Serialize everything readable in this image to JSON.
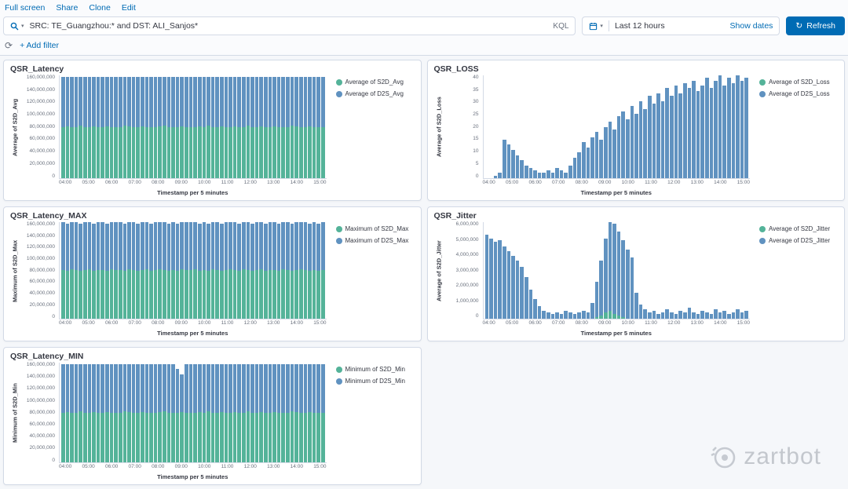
{
  "toolbar": {
    "links": [
      "Full screen",
      "Share",
      "Clone",
      "Edit"
    ]
  },
  "query_bar": {
    "query": "SRC: TE_Guangzhou:* and DST: ALI_Sanjos*",
    "language_label": "KQL",
    "time_range": "Last 12 hours",
    "show_dates_label": "Show dates",
    "refresh_label": "Refresh"
  },
  "filter_bar": {
    "add_filter_label": "+ Add filter"
  },
  "colors": {
    "green": "#54B399",
    "blue": "#6092C0",
    "link": "#006BB4"
  },
  "watermark": {
    "text": "zartbot"
  },
  "panels": [
    {
      "title": "QSR_Latency",
      "ylabel": "Average of S2D_Avg",
      "xlabel": "Timestamp per 5 minutes",
      "yticks": [
        "160,000,000",
        "140,000,000",
        "120,000,000",
        "100,000,000",
        "80,000,000",
        "60,000,000",
        "40,000,000",
        "20,000,000",
        "0"
      ],
      "xticks": [
        "04:00",
        "05:00",
        "06:00",
        "07:00",
        "08:00",
        "09:00",
        "10:00",
        "11:00",
        "12:00",
        "13:00",
        "14:00",
        "15:00"
      ],
      "legend": [
        {
          "label": "Average of S2D_Avg",
          "color": "#54B399"
        },
        {
          "label": "Average of D2S_Avg",
          "color": "#6092C0"
        }
      ],
      "chart": {
        "type": "bar",
        "stacked": true,
        "ymax": 160,
        "value_unit": "millions",
        "series": [
          {
            "name": "Average of S2D_Avg",
            "color": "#54B399",
            "values": [
              80,
              81,
              79,
              80,
              82,
              80,
              79,
              81,
              80,
              80,
              81,
              79,
              80,
              80,
              82,
              81,
              79,
              80,
              81,
              80,
              79,
              80,
              81,
              82,
              80,
              79,
              80,
              81,
              80,
              80,
              79,
              81,
              80,
              82,
              80,
              79,
              81,
              80,
              80,
              81,
              79,
              80,
              82,
              80,
              79,
              81,
              80,
              80,
              81,
              79,
              80,
              80,
              82,
              81,
              79,
              80,
              81,
              80,
              79,
              80
            ]
          },
          {
            "name": "Average of D2S_Avg",
            "color": "#6092C0",
            "values": [
              78,
              77,
              79,
              78,
              76,
              78,
              79,
              77,
              78,
              78,
              77,
              79,
              78,
              78,
              76,
              77,
              79,
              78,
              77,
              78,
              79,
              78,
              77,
              76,
              78,
              79,
              78,
              77,
              78,
              78,
              79,
              77,
              78,
              76,
              78,
              79,
              77,
              78,
              78,
              77,
              79,
              78,
              76,
              78,
              79,
              77,
              78,
              78,
              77,
              79,
              78,
              78,
              76,
              77,
              79,
              78,
              77,
              78,
              79,
              78
            ]
          }
        ]
      }
    },
    {
      "title": "QSR_LOSS",
      "ylabel": "Average of S2D_Loss",
      "xlabel": "Timestamp per 5 minutes",
      "yticks": [
        "40",
        "35",
        "30",
        "25",
        "20",
        "15",
        "10",
        "5",
        "0"
      ],
      "xticks": [
        "04:00",
        "05:00",
        "06:00",
        "07:00",
        "08:00",
        "09:00",
        "10:00",
        "11:00",
        "12:00",
        "13:00",
        "14:00",
        "15:00"
      ],
      "legend": [
        {
          "label": "Average of S2D_Loss",
          "color": "#54B399"
        },
        {
          "label": "Average of D2S_Loss",
          "color": "#6092C0"
        }
      ],
      "chart": {
        "type": "bar",
        "stacked": true,
        "ymax": 40,
        "value_unit": "absolute",
        "series": [
          {
            "name": "Average of S2D_Loss",
            "color": "#54B399",
            "values": [
              0,
              0,
              0,
              0,
              0,
              0,
              0,
              0,
              0,
              0,
              0,
              0,
              0,
              0,
              0,
              0,
              0,
              0,
              0,
              0,
              0,
              0,
              0,
              0,
              0,
              0,
              0,
              0,
              0,
              0,
              0,
              0,
              0,
              0,
              0,
              0,
              0,
              0,
              0,
              0,
              0,
              0,
              0,
              0,
              0,
              0,
              0,
              0,
              0,
              0,
              0,
              0,
              0,
              0,
              0,
              0,
              0,
              0,
              0,
              0
            ]
          },
          {
            "name": "Average of D2S_Loss",
            "color": "#6092C0",
            "values": [
              0,
              0,
              1,
              2,
              15,
              13,
              11,
              9,
              7,
              5,
              4,
              3,
              2,
              2,
              3,
              2,
              4,
              3,
              2,
              5,
              8,
              10,
              14,
              12,
              16,
              18,
              15,
              20,
              22,
              19,
              24,
              26,
              23,
              28,
              25,
              30,
              27,
              32,
              29,
              33,
              30,
              35,
              32,
              36,
              33,
              37,
              35,
              38,
              34,
              36,
              39,
              35,
              38,
              40,
              36,
              39,
              37,
              40,
              38,
              39
            ]
          }
        ]
      }
    },
    {
      "title": "QSR_Latency_MAX",
      "ylabel": "Maximum of S2D_Max",
      "xlabel": "Timestamp per 5 minutes",
      "yticks": [
        "160,000,000",
        "140,000,000",
        "120,000,000",
        "100,000,000",
        "80,000,000",
        "60,000,000",
        "40,000,000",
        "20,000,000",
        "0"
      ],
      "xticks": [
        "04:00",
        "05:00",
        "06:00",
        "07:00",
        "08:00",
        "09:00",
        "10:00",
        "11:00",
        "12:00",
        "13:00",
        "14:00",
        "15:00"
      ],
      "legend": [
        {
          "label": "Maximum of S2D_Max",
          "color": "#54B399"
        },
        {
          "label": "Maximum of D2S_Max",
          "color": "#6092C0"
        }
      ],
      "chart": {
        "type": "bar",
        "stacked": true,
        "ymax": 160,
        "value_unit": "millions",
        "series": [
          {
            "name": "Maximum of S2D_Max",
            "color": "#54B399",
            "values": [
              81,
              80,
              82,
              81,
              80,
              81,
              82,
              80,
              81,
              81,
              80,
              82,
              81,
              81,
              80,
              82,
              81,
              80,
              81,
              82,
              80,
              81,
              82,
              81,
              80,
              81,
              80,
              82,
              81,
              81,
              82,
              80,
              81,
              80,
              82,
              81,
              80,
              81,
              82,
              81,
              80,
              82,
              81,
              80,
              81,
              82,
              80,
              81,
              81,
              80,
              82,
              81,
              80,
              81,
              82,
              81,
              80,
              81,
              80,
              81
            ]
          },
          {
            "name": "Maximum of D2S_Max",
            "color": "#6092C0",
            "values": [
              79,
              78,
              80,
              79,
              78,
              79,
              80,
              78,
              79,
              79,
              78,
              80,
              79,
              79,
              78,
              80,
              79,
              78,
              79,
              80,
              78,
              79,
              80,
              79,
              78,
              79,
              78,
              96,
              79,
              79,
              80,
              78,
              79,
              78,
              80,
              79,
              78,
              79,
              80,
              79,
              78,
              80,
              79,
              78,
              79,
              80,
              78,
              79,
              79,
              78,
              80,
              79,
              78,
              79,
              80,
              79,
              78,
              79,
              78,
              79
            ]
          }
        ]
      }
    },
    {
      "title": "QSR_Jitter",
      "ylabel": "Average of S2D_Jitter",
      "xlabel": "Timestamp per 5 minutes",
      "yticks": [
        "6,000,000",
        "5,000,000",
        "4,000,000",
        "3,000,000",
        "2,000,000",
        "1,000,000",
        "0"
      ],
      "xticks": [
        "04:00",
        "05:00",
        "06:00",
        "07:00",
        "08:00",
        "09:00",
        "10:00",
        "11:00",
        "12:00",
        "13:00",
        "14:00",
        "15:00"
      ],
      "legend": [
        {
          "label": "Average of S2D_Jitter",
          "color": "#54B399"
        },
        {
          "label": "Average of D2S_Jitter",
          "color": "#6092C0"
        }
      ],
      "chart": {
        "type": "bar",
        "stacked": true,
        "ymax": 6,
        "value_unit": "millions",
        "series": [
          {
            "name": "Average of S2D_Jitter",
            "color": "#54B399",
            "values": [
              0,
              0,
              0,
              0,
              0,
              0,
              0,
              0,
              0,
              0,
              0,
              0,
              0,
              0,
              0,
              0,
              0,
              0,
              0,
              0,
              0,
              0,
              0,
              0,
              0,
              0.1,
              0.2,
              0.4,
              0.5,
              0.3,
              0.2,
              0.1,
              0,
              0,
              0,
              0,
              0,
              0,
              0,
              0,
              0,
              0,
              0,
              0,
              0,
              0,
              0,
              0,
              0,
              0,
              0,
              0,
              0,
              0,
              0,
              0,
              0,
              0,
              0,
              0
            ]
          },
          {
            "name": "Average of D2S_Jitter",
            "color": "#6092C0",
            "values": [
              5.2,
              5.0,
              4.8,
              4.9,
              4.5,
              4.2,
              3.9,
              3.6,
              3.2,
              2.6,
              1.8,
              1.2,
              0.8,
              0.5,
              0.4,
              0.3,
              0.4,
              0.3,
              0.5,
              0.4,
              0.3,
              0.4,
              0.5,
              0.4,
              1.0,
              2.2,
              3.4,
              4.6,
              6.8,
              5.6,
              5.2,
              4.8,
              4.3,
              3.8,
              1.6,
              0.9,
              0.6,
              0.4,
              0.5,
              0.3,
              0.4,
              0.6,
              0.4,
              0.3,
              0.5,
              0.4,
              0.7,
              0.4,
              0.3,
              0.5,
              0.4,
              0.3,
              0.6,
              0.4,
              0.5,
              0.3,
              0.4,
              0.6,
              0.4,
              0.5
            ]
          }
        ]
      }
    },
    {
      "title": "QSR_Latency_MIN",
      "ylabel": "Minimum of S2D_Min",
      "xlabel": "Timestamp per 5 minutes",
      "yticks": [
        "160,000,000",
        "140,000,000",
        "120,000,000",
        "100,000,000",
        "80,000,000",
        "60,000,000",
        "40,000,000",
        "20,000,000",
        "0"
      ],
      "xticks": [
        "04:00",
        "05:00",
        "06:00",
        "07:00",
        "08:00",
        "09:00",
        "10:00",
        "11:00",
        "12:00",
        "13:00",
        "14:00",
        "15:00"
      ],
      "legend": [
        {
          "label": "Minimum of S2D_Min",
          "color": "#54B399"
        },
        {
          "label": "Minimum of D2S_Min",
          "color": "#6092C0"
        }
      ],
      "chart": {
        "type": "bar",
        "stacked": true,
        "ymax": 160,
        "value_unit": "millions",
        "series": [
          {
            "name": "Minimum of S2D_Min",
            "color": "#54B399",
            "values": [
              80,
              81,
              79,
              80,
              82,
              80,
              79,
              81,
              80,
              80,
              81,
              79,
              80,
              80,
              82,
              81,
              79,
              80,
              81,
              80,
              79,
              80,
              81,
              82,
              80,
              79,
              80,
              81,
              80,
              80,
              79,
              81,
              80,
              82,
              80,
              79,
              81,
              80,
              80,
              81,
              79,
              80,
              82,
              80,
              79,
              81,
              80,
              80,
              81,
              79,
              80,
              80,
              82,
              81,
              79,
              80,
              81,
              80,
              79,
              80
            ]
          },
          {
            "name": "Minimum of D2S_Min",
            "color": "#6092C0",
            "values": [
              78,
              77,
              79,
              78,
              76,
              78,
              79,
              77,
              78,
              78,
              77,
              79,
              78,
              78,
              76,
              77,
              79,
              78,
              77,
              78,
              79,
              78,
              77,
              76,
              78,
              79,
              70,
              60,
              78,
              78,
              79,
              77,
              78,
              76,
              78,
              79,
              77,
              78,
              78,
              77,
              79,
              78,
              76,
              78,
              79,
              77,
              78,
              78,
              77,
              79,
              78,
              78,
              76,
              77,
              79,
              78,
              77,
              78,
              79,
              78
            ]
          }
        ]
      }
    }
  ]
}
